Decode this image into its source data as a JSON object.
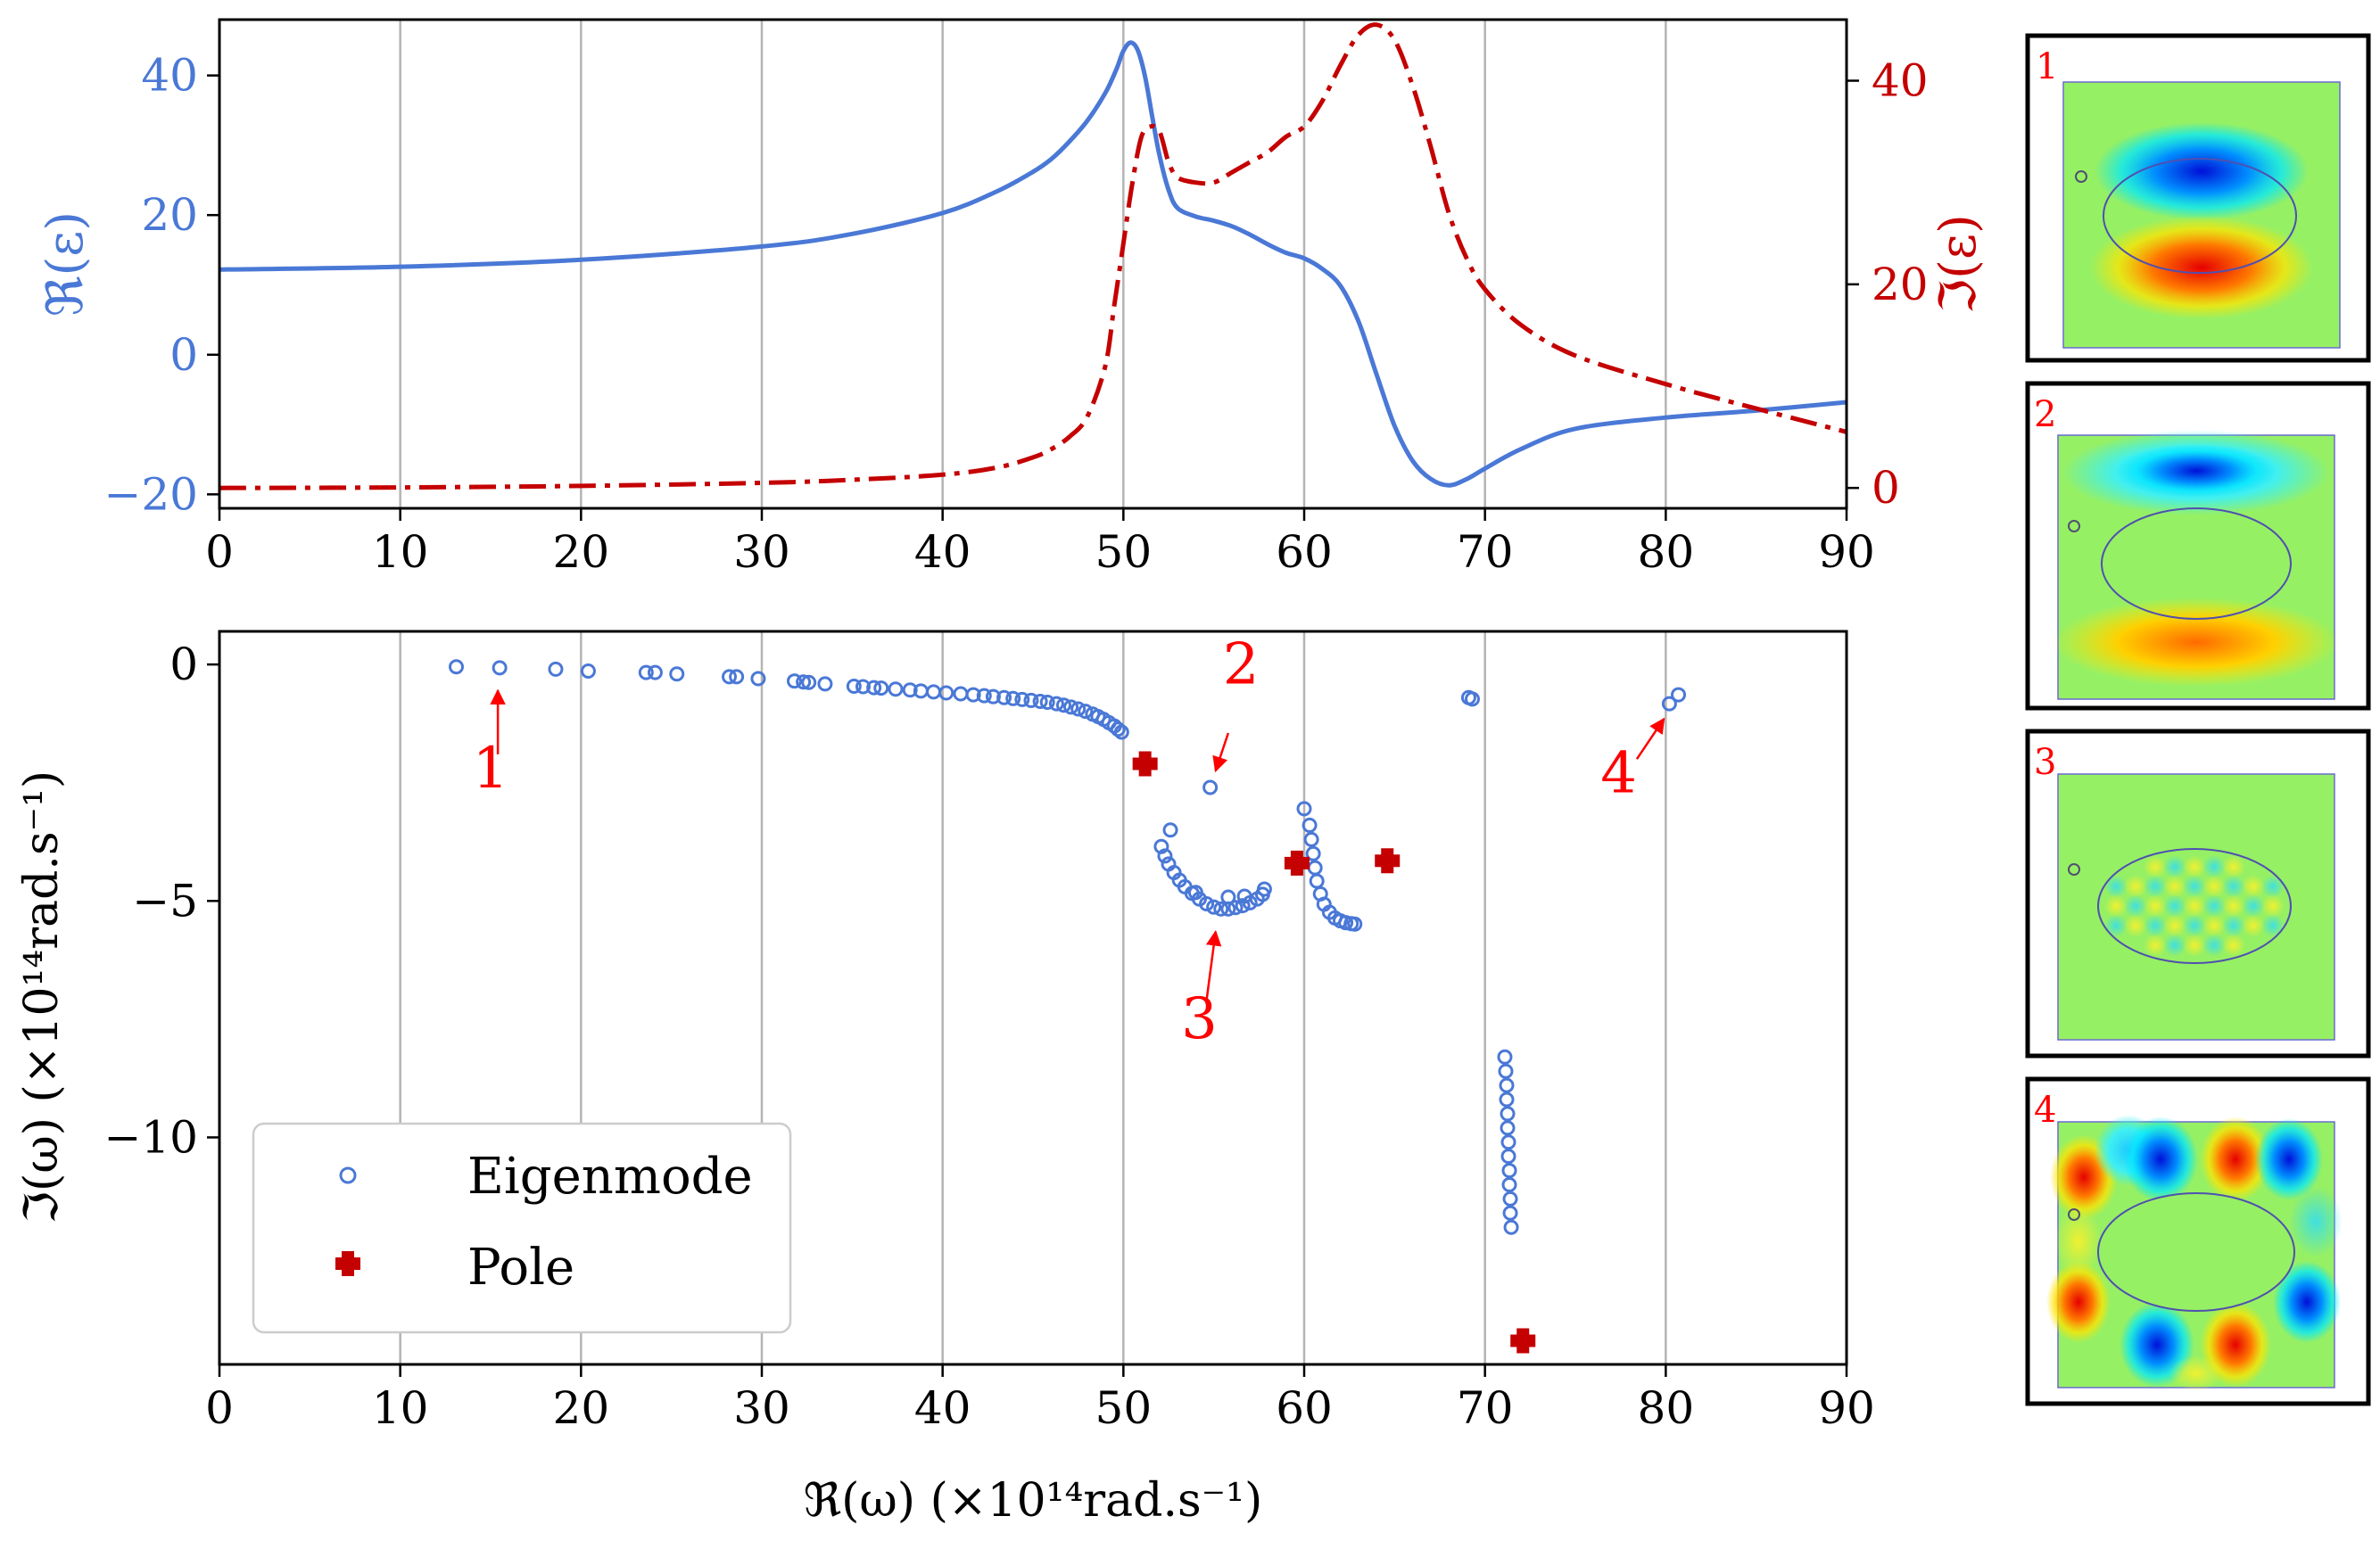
{
  "colors": {
    "real": "#4a78d6",
    "imag": "#c40000",
    "pole": "#c40000",
    "label": "#ff0000",
    "grid": "#b4b4b4",
    "axis": "#000000"
  },
  "chart_data": [
    {
      "id": "permittivity",
      "type": "line",
      "xlim": [
        0,
        90
      ],
      "xticks": [
        "0",
        "10",
        "20",
        "30",
        "40",
        "50",
        "60",
        "70",
        "80",
        "90"
      ],
      "grid": "vertical",
      "left_axis": {
        "label": "ℜ(ε)",
        "ylim": [
          -22,
          48
        ],
        "ticks": [
          {
            "value": 40,
            "label": "40"
          },
          {
            "value": 20,
            "label": "20"
          },
          {
            "value": 0,
            "label": "0"
          },
          {
            "value": -20,
            "label": "−20"
          }
        ]
      },
      "right_axis": {
        "label": "ℑ(ε)",
        "ylim": [
          -2,
          46
        ],
        "ticks": [
          {
            "value": 40,
            "label": "40"
          },
          {
            "value": 20,
            "label": "20"
          },
          {
            "value": 0,
            "label": "0"
          }
        ]
      },
      "series": [
        {
          "name": "Re(epsilon)",
          "axis": "left",
          "style": "solid",
          "x": [
            0,
            10,
            20,
            30,
            35,
            40,
            43,
            45,
            46,
            47,
            48,
            49,
            49.6,
            50,
            50.4,
            50.8,
            51.2,
            51.6,
            52,
            52.5,
            53,
            54,
            55,
            56,
            57,
            58,
            59,
            60,
            61,
            62,
            63,
            64,
            65,
            66,
            67,
            68,
            69,
            70,
            72,
            75,
            80,
            85,
            90
          ],
          "y": [
            12.2,
            12.6,
            13.6,
            15.5,
            17.3,
            20.3,
            23.4,
            26.2,
            28,
            30.5,
            33.5,
            37.5,
            40.8,
            43.5,
            44.7,
            43.6,
            39.8,
            34,
            28.5,
            23.6,
            21,
            19.8,
            19.2,
            18.4,
            17.2,
            15.8,
            14.6,
            13.8,
            12.3,
            9.9,
            4.8,
            -2.8,
            -10.2,
            -15.2,
            -17.8,
            -18.7,
            -17.8,
            -16.3,
            -13.5,
            -10.6,
            -9,
            -8,
            -6.8
          ]
        },
        {
          "name": "Im(epsilon)",
          "axis": "right",
          "style": "dashdot",
          "x": [
            0,
            10,
            20,
            30,
            35,
            40,
            43,
            45,
            46,
            47,
            48,
            49,
            49.5,
            50,
            50.5,
            51,
            51.5,
            52,
            52.5,
            53,
            54,
            55,
            56,
            57,
            58,
            59,
            60,
            61,
            62,
            63,
            64,
            65,
            66,
            67,
            68,
            69,
            70,
            72,
            75,
            80,
            85,
            90
          ],
          "y": [
            0,
            0.05,
            0.2,
            0.5,
            0.8,
            1.3,
            2,
            3,
            3.8,
            5,
            7,
            12,
            18,
            24,
            30,
            34.5,
            35.5,
            35,
            32,
            30.5,
            30,
            30,
            31,
            32,
            33,
            34.5,
            35.5,
            38,
            41.5,
            44.5,
            45.5,
            44,
            39.5,
            33.5,
            27,
            22.5,
            19.5,
            16,
            13,
            10.2,
            7.8,
            5.5
          ]
        }
      ]
    },
    {
      "id": "complex-frequency",
      "type": "scatter",
      "xlabel": "ℜ(ω)  (×10¹⁴rad.s⁻¹)",
      "ylabel": "ℑ(ω)  (×10¹⁴rad.s⁻¹)",
      "xlim": [
        0,
        90
      ],
      "ylim": [
        -14.8,
        0.7
      ],
      "xticks": [
        "0",
        "10",
        "20",
        "30",
        "40",
        "50",
        "60",
        "70",
        "80",
        "90"
      ],
      "yticks": [
        {
          "value": 0,
          "label": "0"
        },
        {
          "value": -5,
          "label": "−5"
        },
        {
          "value": -10,
          "label": "−10"
        }
      ],
      "grid": "vertical",
      "legend": {
        "position": "lower-left",
        "entries": [
          {
            "label": "Eigenmode",
            "marker": "open-circle"
          },
          {
            "label": "Pole",
            "marker": "plus"
          }
        ]
      },
      "series": [
        {
          "name": "Eigenmode",
          "marker": "open-circle",
          "points": [
            [
              13.1,
              -0.05
            ],
            [
              15.5,
              -0.07
            ],
            [
              18.6,
              -0.1
            ],
            [
              20.4,
              -0.14
            ],
            [
              23.6,
              -0.17
            ],
            [
              24.1,
              -0.17
            ],
            [
              25.3,
              -0.2
            ],
            [
              28.2,
              -0.26
            ],
            [
              28.6,
              -0.26
            ],
            [
              29.8,
              -0.3
            ],
            [
              31.8,
              -0.35
            ],
            [
              32.3,
              -0.37
            ],
            [
              32.6,
              -0.38
            ],
            [
              33.5,
              -0.41
            ],
            [
              35.1,
              -0.46
            ],
            [
              35.6,
              -0.47
            ],
            [
              36.2,
              -0.49
            ],
            [
              36.6,
              -0.5
            ],
            [
              37.4,
              -0.52
            ],
            [
              38.2,
              -0.54
            ],
            [
              38.8,
              -0.56
            ],
            [
              39.5,
              -0.58
            ],
            [
              40.2,
              -0.6
            ],
            [
              41,
              -0.62
            ],
            [
              41.7,
              -0.64
            ],
            [
              42.3,
              -0.66
            ],
            [
              42.8,
              -0.68
            ],
            [
              43.4,
              -0.7
            ],
            [
              43.9,
              -0.72
            ],
            [
              44.4,
              -0.74
            ],
            [
              44.9,
              -0.76
            ],
            [
              45.4,
              -0.78
            ],
            [
              45.8,
              -0.8
            ],
            [
              46.3,
              -0.83
            ],
            [
              46.7,
              -0.86
            ],
            [
              47.1,
              -0.9
            ],
            [
              47.5,
              -0.94
            ],
            [
              47.9,
              -0.99
            ],
            [
              48.3,
              -1.05
            ],
            [
              48.6,
              -1.1
            ],
            [
              48.9,
              -1.16
            ],
            [
              49.2,
              -1.23
            ],
            [
              49.5,
              -1.3
            ],
            [
              49.7,
              -1.37
            ],
            [
              49.9,
              -1.43
            ],
            [
              54.8,
              -2.6
            ],
            [
              52.6,
              -3.5
            ],
            [
              52.1,
              -3.85
            ],
            [
              52.3,
              -4.05
            ],
            [
              52.5,
              -4.22
            ],
            [
              52.8,
              -4.4
            ],
            [
              53.1,
              -4.56
            ],
            [
              53.4,
              -4.7
            ],
            [
              53.8,
              -4.84
            ],
            [
              54.2,
              -4.96
            ],
            [
              54.6,
              -5.06
            ],
            [
              55,
              -5.13
            ],
            [
              55.4,
              -5.17
            ],
            [
              55.8,
              -5.17
            ],
            [
              56.2,
              -5.14
            ],
            [
              56.6,
              -5.1
            ],
            [
              57,
              -5.04
            ],
            [
              57.4,
              -4.96
            ],
            [
              57.7,
              -4.86
            ],
            [
              57.8,
              -4.75
            ],
            [
              54,
              -4.82
            ],
            [
              55.8,
              -4.92
            ],
            [
              56.7,
              -4.9
            ],
            [
              60,
              -3.05
            ],
            [
              60.3,
              -3.4
            ],
            [
              60.4,
              -3.7
            ],
            [
              60.5,
              -4.0
            ],
            [
              60.6,
              -4.3
            ],
            [
              60.7,
              -4.58
            ],
            [
              60.9,
              -4.85
            ],
            [
              61.1,
              -5.07
            ],
            [
              61.4,
              -5.24
            ],
            [
              61.7,
              -5.36
            ],
            [
              62,
              -5.42
            ],
            [
              62.3,
              -5.46
            ],
            [
              62.6,
              -5.48
            ],
            [
              62.8,
              -5.49
            ],
            [
              69.1,
              -0.7
            ],
            [
              69.3,
              -0.73
            ],
            [
              71.1,
              -8.3
            ],
            [
              71.15,
              -8.6
            ],
            [
              71.2,
              -8.9
            ],
            [
              71.2,
              -9.2
            ],
            [
              71.25,
              -9.5
            ],
            [
              71.25,
              -9.8
            ],
            [
              71.3,
              -10.1
            ],
            [
              71.3,
              -10.4
            ],
            [
              71.35,
              -10.7
            ],
            [
              71.35,
              -11.0
            ],
            [
              71.4,
              -11.3
            ],
            [
              71.4,
              -11.6
            ],
            [
              71.45,
              -11.9
            ],
            [
              80.2,
              -0.83
            ],
            [
              80.7,
              -0.64
            ]
          ]
        },
        {
          "name": "Pole",
          "marker": "plus",
          "points": [
            [
              51.2,
              -2.1
            ],
            [
              59.6,
              -4.2
            ],
            [
              64.6,
              -4.15
            ],
            [
              72.1,
              -14.3
            ]
          ]
        }
      ],
      "annotations": [
        {
          "text": "1",
          "text_at": [
            15,
            -2.6
          ],
          "arrow_from": [
            15.4,
            -1.9
          ],
          "arrow_to": [
            15.4,
            -0.55
          ]
        },
        {
          "text": "2",
          "text_at": [
            56.5,
            -0.4
          ],
          "arrow_from": [
            55.8,
            -1.45
          ],
          "arrow_to": [
            55.1,
            -2.25
          ]
        },
        {
          "text": "3",
          "text_at": [
            54.2,
            -7.9
          ],
          "arrow_from": [
            54.6,
            -7.1
          ],
          "arrow_to": [
            55.1,
            -5.65
          ]
        },
        {
          "text": "4",
          "text_at": [
            77.4,
            -2.7
          ],
          "arrow_from": [
            78.4,
            -2.0
          ],
          "arrow_to": [
            79.9,
            -1.15
          ]
        }
      ]
    }
  ],
  "mode_panels": [
    {
      "label": "1",
      "pattern": "dipole"
    },
    {
      "label": "2",
      "pattern": "shifted-dipole"
    },
    {
      "label": "3",
      "pattern": "checker"
    },
    {
      "label": "4",
      "pattern": "lattice"
    }
  ]
}
